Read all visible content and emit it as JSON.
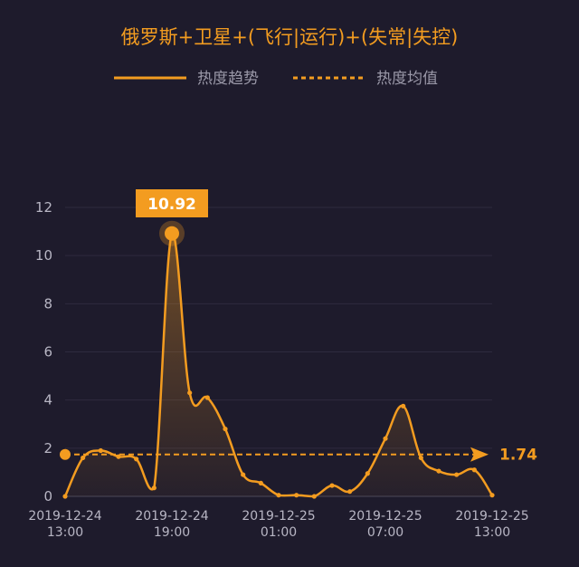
{
  "chart_data": {
    "type": "area",
    "title": "俄罗斯+卫星+(飞行|运行)+(失常|失控)",
    "legend": {
      "placement": "top",
      "items": [
        {
          "label": "热度趋势",
          "style": "solid"
        },
        {
          "label": "热度均值",
          "style": "dashed"
        }
      ]
    },
    "colors": {
      "line": "#f39c20",
      "background": "#1e1b2c",
      "grid": "#2e2b3e",
      "label_box": "#f39c20"
    },
    "ylim": [
      0,
      12
    ],
    "yticks": [
      "0",
      "2",
      "4",
      "6",
      "8",
      "10",
      "12"
    ],
    "xticks": [
      {
        "index": 0,
        "line1": "2019-12-24",
        "line2": "13:00"
      },
      {
        "index": 6,
        "line1": "2019-12-24",
        "line2": "19:00"
      },
      {
        "index": 12,
        "line1": "2019-12-25",
        "line2": "01:00"
      },
      {
        "index": 18,
        "line1": "2019-12-25",
        "line2": "07:00"
      },
      {
        "index": 24,
        "line1": "2019-12-25",
        "line2": "13:00"
      }
    ],
    "series": [
      {
        "values": [
          0.0,
          1.6,
          1.9,
          1.65,
          1.55,
          0.35,
          10.92,
          4.3,
          4.1,
          2.8,
          0.9,
          0.55,
          0.05,
          0.05,
          0.0,
          0.45,
          0.2,
          0.95,
          2.4,
          3.75,
          1.6,
          1.05,
          0.9,
          1.1,
          0.05
        ]
      }
    ],
    "mean": {
      "value": 1.74,
      "label": "1.74"
    },
    "peak": {
      "index": 6,
      "value": 10.92,
      "label": "10.92"
    }
  }
}
